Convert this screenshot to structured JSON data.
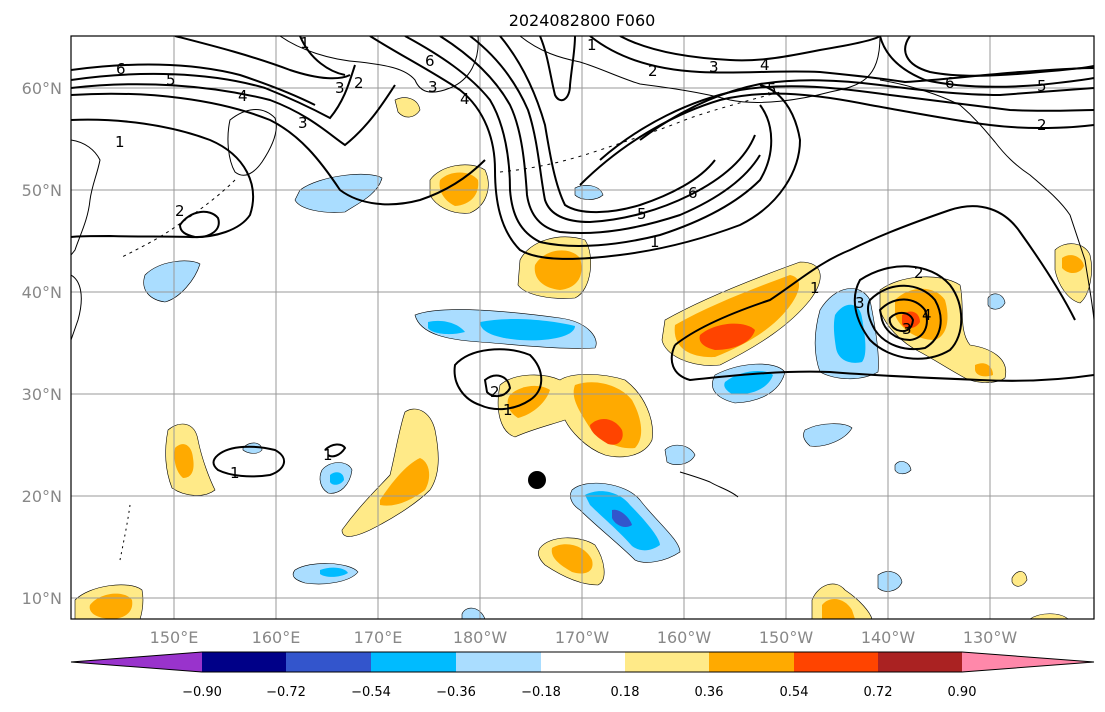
{
  "title": "2024082800 F060",
  "latitude_labels": [
    "60°N",
    "50°N",
    "40°N",
    "30°N",
    "20°N",
    "10°N"
  ],
  "longitude_labels": [
    "150°E",
    "160°E",
    "170°E",
    "180°W",
    "170°W",
    "160°W",
    "150°W",
    "140°W",
    "130°W"
  ],
  "colorbar": {
    "tick_labels": [
      "−0.90",
      "−0.72",
      "−0.54",
      "−0.36",
      "−0.18",
      "0.18",
      "0.36",
      "0.54",
      "0.72",
      "0.90"
    ],
    "colors": [
      "#9933cc",
      "#000088",
      "#3355cc",
      "#00bbff",
      "#aaddff",
      "#ffffff",
      "#ffea88",
      "#ffaa00",
      "#ff4400",
      "#aa2222",
      "#ff88aa"
    ]
  },
  "contour_labels": [
    "1",
    "2",
    "3",
    "4",
    "5",
    "6"
  ],
  "marker": "storm-position-dot"
}
